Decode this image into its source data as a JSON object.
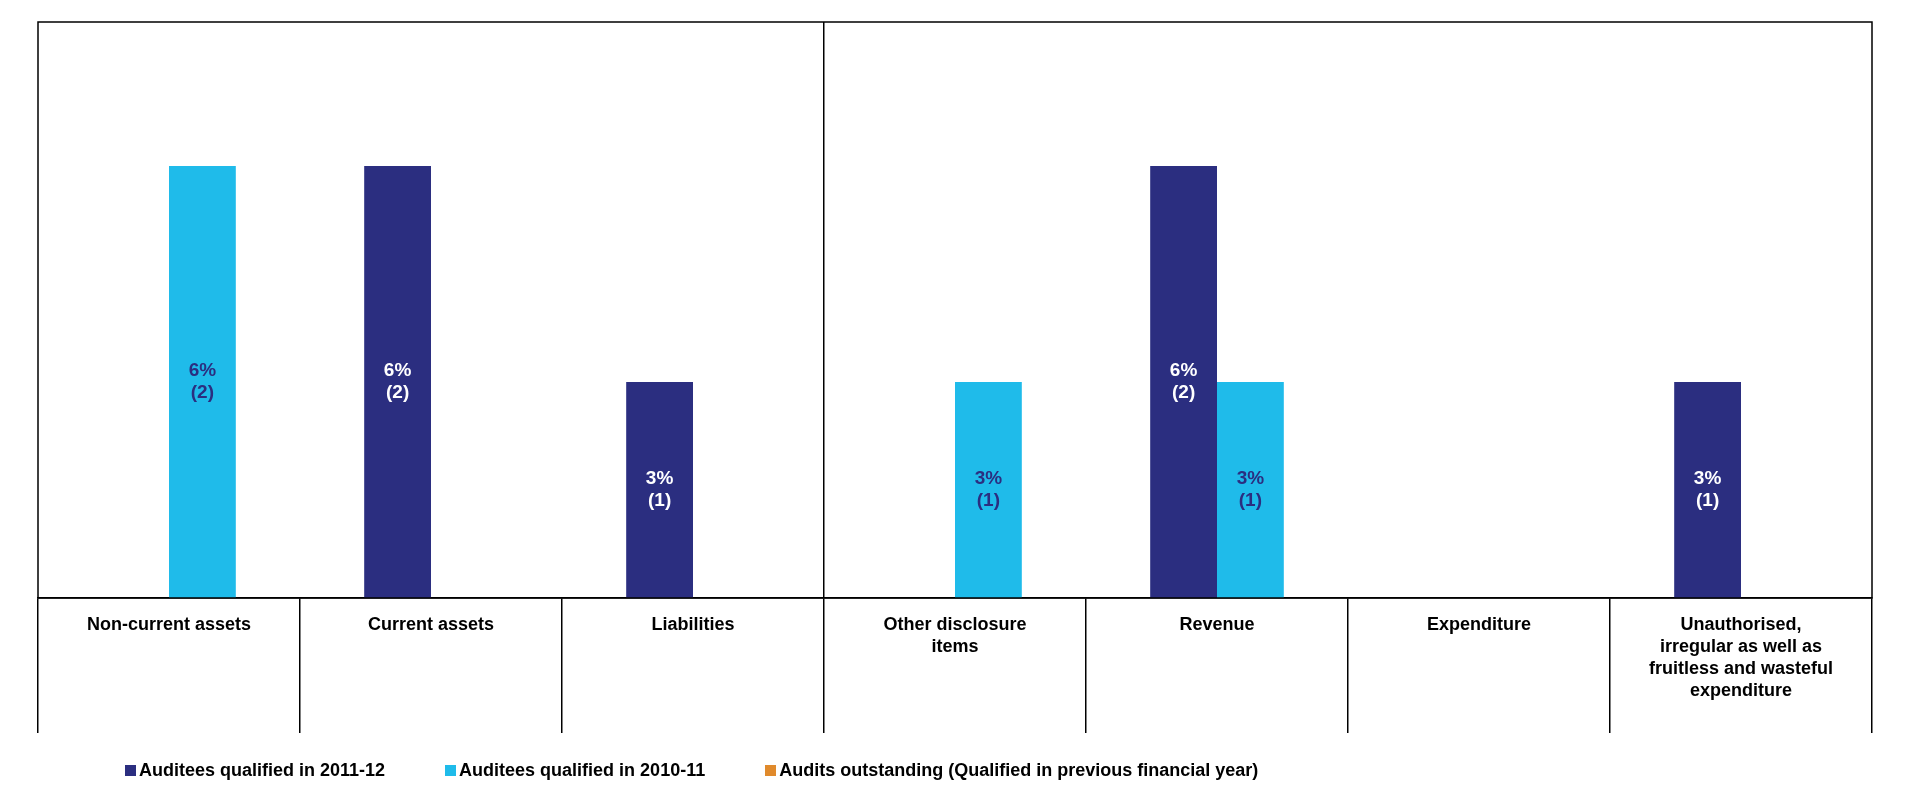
{
  "chart_data": {
    "type": "bar",
    "categories": [
      "Non-current assets",
      "Current assets",
      "Liabilities",
      "Other disclosure items",
      "Revenue",
      "Expenditure",
      "Unauthorised, irregular as well as fruitless and wasteful expenditure"
    ],
    "series": [
      {
        "name": "Auditees qualified in 2011-12",
        "color": "#2b2e80",
        "values": [
          null,
          6,
          3,
          null,
          6,
          null,
          3
        ],
        "value_labels": [
          null,
          "6% (2)",
          "3% (1)",
          null,
          "6% (2)",
          null,
          "3% (1)"
        ]
      },
      {
        "name": "Auditees qualified in 2010-11",
        "color": "#1fbbea",
        "values": [
          6,
          null,
          null,
          3,
          3,
          null,
          null
        ],
        "value_labels": [
          "6% (2)",
          null,
          null,
          "3% (1)",
          "3% (1)",
          null,
          null
        ]
      },
      {
        "name": "Audits outstanding (Qualified in previous financial year)",
        "color": "#e08a2c",
        "values": [
          null,
          null,
          null,
          null,
          null,
          null,
          null
        ]
      }
    ],
    "ylim": [
      0,
      8
    ],
    "tick_labels": "x",
    "legend": "bottom"
  }
}
